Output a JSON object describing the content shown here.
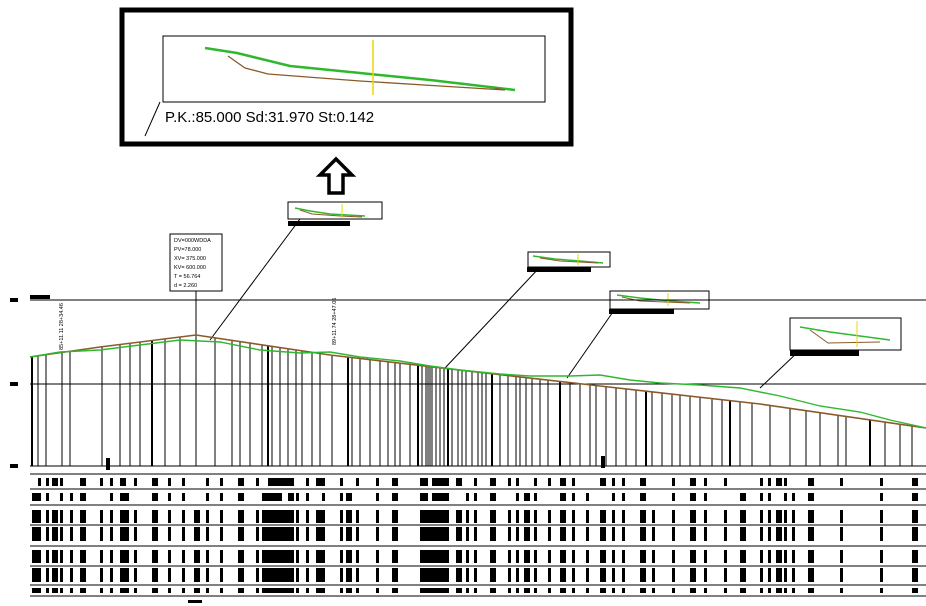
{
  "zoom_label": "P.K.:85.000 Sd:31.970 St:0.142",
  "vertex_box": {
    "lines": [
      "DV=000WDDA",
      "PV=78.000",
      "XV= 375.000",
      "KV= 600.000",
      "T = 56.764",
      "d = 2.260"
    ]
  },
  "station_labels": [
    "85+11.11 28+34.46",
    "89+11.74 28+47.05"
  ],
  "colors": {
    "terrain": "#2fb82f",
    "grade": "#8b5a2b",
    "axis": "#e8d800",
    "ink": "#000000"
  },
  "icons": {
    "zoom_pointer": "up-arrow-icon"
  }
}
